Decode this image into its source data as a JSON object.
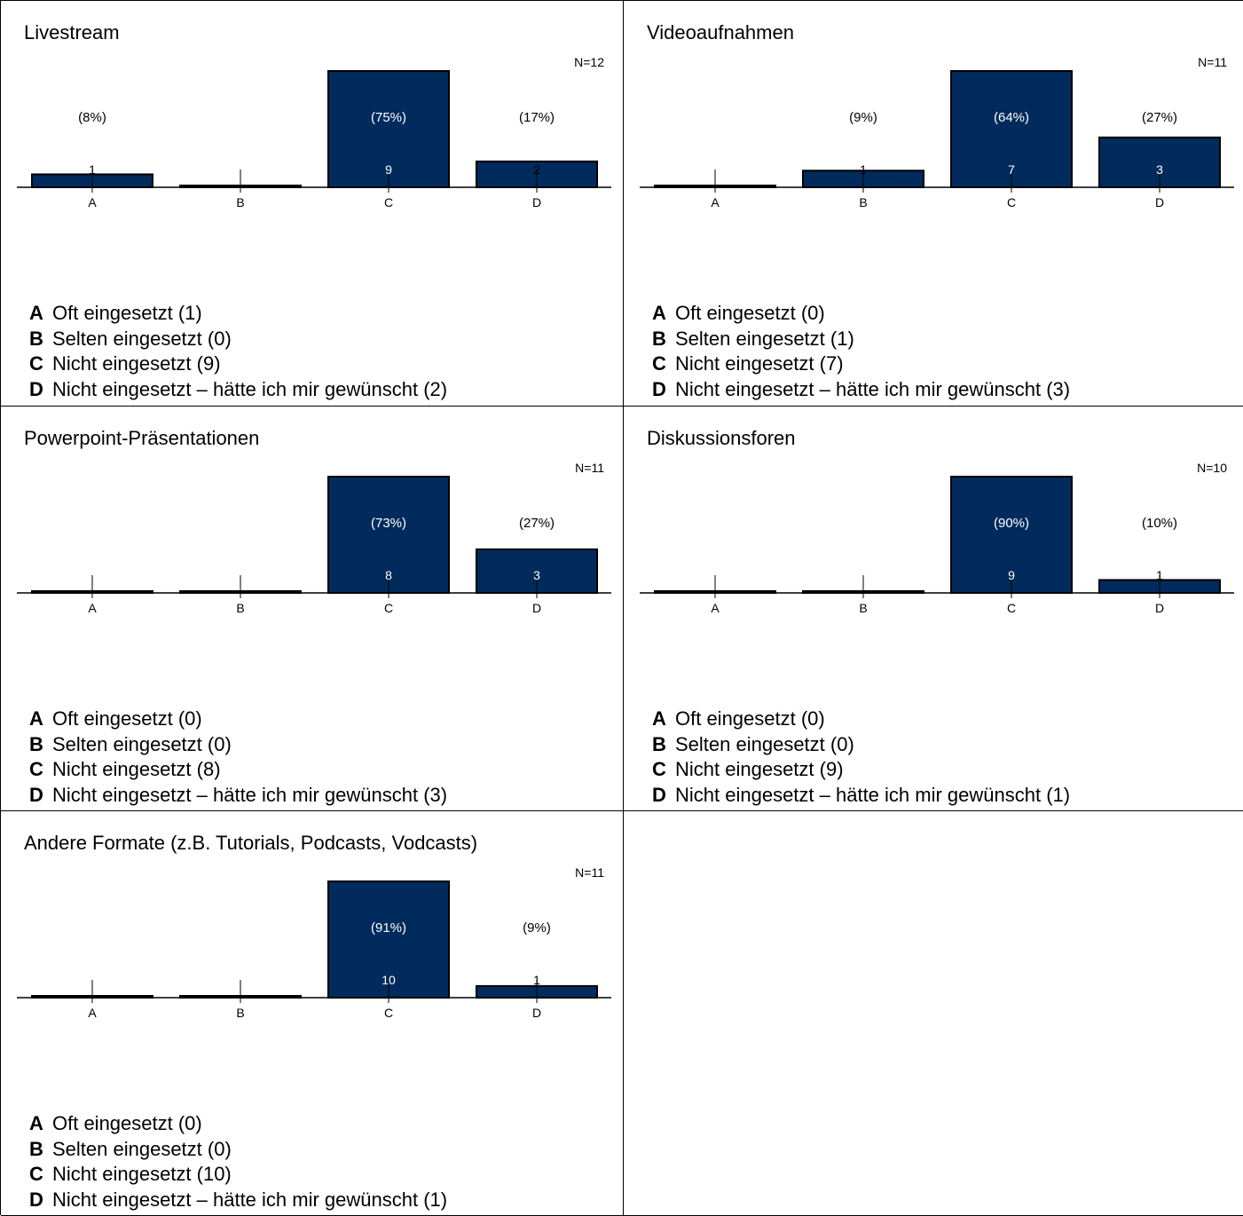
{
  "colors": {
    "bar": "#002b5c",
    "bar_outline": "#000000",
    "text_on_bar": "#ffffff",
    "text": "#000000"
  },
  "chart_data": [
    {
      "type": "bar",
      "title": "Livestream",
      "n_label": "N=12",
      "categories": [
        "A",
        "B",
        "C",
        "D"
      ],
      "values": [
        1,
        0,
        9,
        2
      ],
      "percent_labels": [
        "(8%)",
        "",
        "(75%)",
        "(17%)"
      ],
      "ylim": [
        0,
        9
      ],
      "legend": [
        {
          "key": "A",
          "text": "Oft eingesetzt (1)"
        },
        {
          "key": "B",
          "text": "Selten eingesetzt (0)"
        },
        {
          "key": "C",
          "text": "Nicht eingesetzt (9)"
        },
        {
          "key": "D",
          "text": "Nicht eingesetzt – hätte ich mir gewünscht (2)"
        }
      ]
    },
    {
      "type": "bar",
      "title": "Videoaufnahmen",
      "n_label": "N=11",
      "categories": [
        "A",
        "B",
        "C",
        "D"
      ],
      "values": [
        0,
        1,
        7,
        3
      ],
      "percent_labels": [
        "",
        "(9%)",
        "(64%)",
        "(27%)"
      ],
      "ylim": [
        0,
        7
      ],
      "legend": [
        {
          "key": "A",
          "text": "Oft eingesetzt (0)"
        },
        {
          "key": "B",
          "text": "Selten eingesetzt (1)"
        },
        {
          "key": "C",
          "text": "Nicht eingesetzt (7)"
        },
        {
          "key": "D",
          "text": "Nicht eingesetzt – hätte ich mir gewünscht (3)"
        }
      ]
    },
    {
      "type": "bar",
      "title": "Powerpoint-Präsentationen",
      "n_label": "N=11",
      "categories": [
        "A",
        "B",
        "C",
        "D"
      ],
      "values": [
        0,
        0,
        8,
        3
      ],
      "percent_labels": [
        "",
        "",
        "(73%)",
        "(27%)"
      ],
      "ylim": [
        0,
        8
      ],
      "legend": [
        {
          "key": "A",
          "text": "Oft eingesetzt (0)"
        },
        {
          "key": "B",
          "text": "Selten eingesetzt (0)"
        },
        {
          "key": "C",
          "text": "Nicht eingesetzt (8)"
        },
        {
          "key": "D",
          "text": "Nicht eingesetzt – hätte ich mir gewünscht (3)"
        }
      ]
    },
    {
      "type": "bar",
      "title": "Diskussionsforen",
      "n_label": "N=10",
      "categories": [
        "A",
        "B",
        "C",
        "D"
      ],
      "values": [
        0,
        0,
        9,
        1
      ],
      "percent_labels": [
        "",
        "",
        "(90%)",
        "(10%)"
      ],
      "ylim": [
        0,
        9
      ],
      "legend": [
        {
          "key": "A",
          "text": "Oft eingesetzt (0)"
        },
        {
          "key": "B",
          "text": "Selten eingesetzt (0)"
        },
        {
          "key": "C",
          "text": "Nicht eingesetzt (9)"
        },
        {
          "key": "D",
          "text": "Nicht eingesetzt – hätte ich mir gewünscht (1)"
        }
      ]
    },
    {
      "type": "bar",
      "title": "Andere Formate (z.B. Tutorials, Podcasts, Vodcasts)",
      "n_label": "N=11",
      "categories": [
        "A",
        "B",
        "C",
        "D"
      ],
      "values": [
        0,
        0,
        10,
        1
      ],
      "percent_labels": [
        "",
        "",
        "(91%)",
        "(9%)"
      ],
      "ylim": [
        0,
        10
      ],
      "legend": [
        {
          "key": "A",
          "text": "Oft eingesetzt (0)"
        },
        {
          "key": "B",
          "text": "Selten eingesetzt (0)"
        },
        {
          "key": "C",
          "text": "Nicht eingesetzt (10)"
        },
        {
          "key": "D",
          "text": "Nicht eingesetzt – hätte ich mir gewünscht (1)"
        }
      ]
    }
  ]
}
